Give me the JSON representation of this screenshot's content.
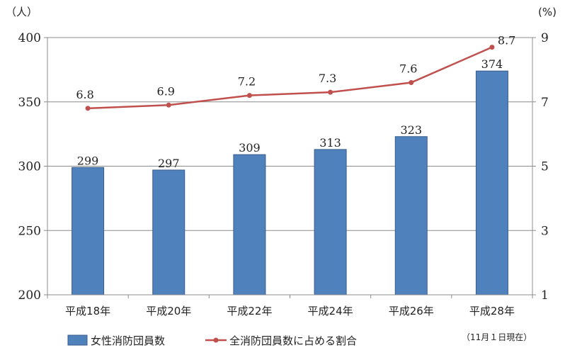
{
  "chart_data": {
    "type": "bar",
    "categories": [
      "平成18年",
      "平成20年",
      "平成22年",
      "平成24年",
      "平成26年",
      "平成28年"
    ],
    "series": [
      {
        "name": "女性消防団員数",
        "type": "bar",
        "axis": "left",
        "values": [
          299,
          297,
          309,
          313,
          323,
          374
        ],
        "labels": [
          "299",
          "297",
          "309",
          "313",
          "323",
          "374"
        ],
        "color": "#4F81BD"
      },
      {
        "name": "全消防団員数に占める割合",
        "type": "line",
        "axis": "right",
        "values": [
          6.8,
          6.9,
          7.2,
          7.3,
          7.6,
          8.7
        ],
        "labels": [
          "6.8",
          "6.9",
          "7.2",
          "7.3",
          "7.6",
          "8.7"
        ],
        "color": "#C0504D"
      }
    ],
    "y_left": {
      "unit": "（人）",
      "ylim": [
        200,
        400
      ],
      "ticks": [
        "200",
        "250",
        "300",
        "350",
        "400"
      ]
    },
    "y_right": {
      "unit": "(%)",
      "ylim": [
        1,
        9
      ],
      "ticks": [
        "1",
        "3",
        "5",
        "7",
        "9"
      ]
    },
    "note": "（11月１日現在）",
    "legend_position": "bottom",
    "grid": true
  }
}
